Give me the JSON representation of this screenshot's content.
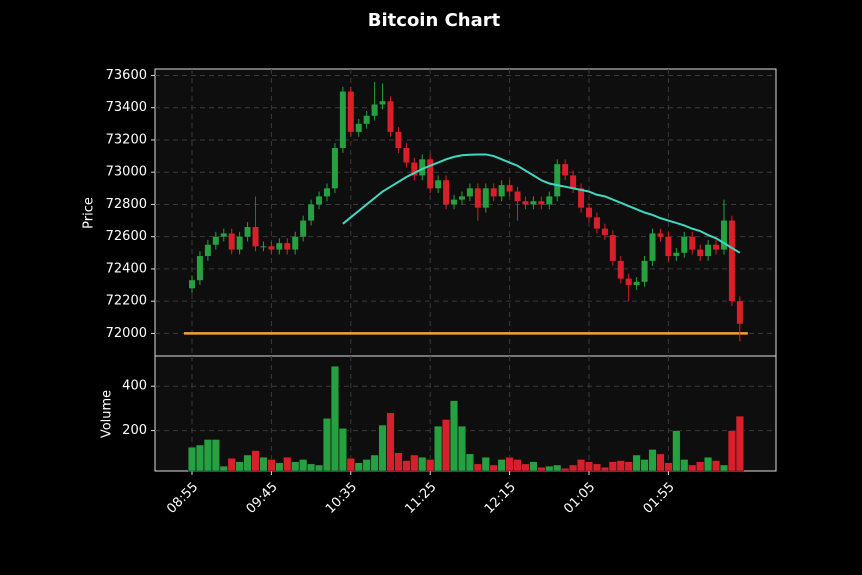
{
  "chart_data": {
    "type": "candlestick",
    "title": "Bitcoin Chart",
    "ylabel": "Price",
    "categories": [
      "08:55",
      null,
      null,
      null,
      null,
      null,
      null,
      null,
      null,
      null,
      "09:45",
      null,
      null,
      null,
      null,
      null,
      null,
      null,
      null,
      null,
      "10:35",
      null,
      null,
      null,
      null,
      null,
      null,
      null,
      null,
      null,
      "11:25",
      null,
      null,
      null,
      null,
      null,
      null,
      null,
      null,
      null,
      "12:15",
      null,
      null,
      null,
      null,
      null,
      null,
      null,
      null,
      null,
      "01:05",
      null,
      null,
      null,
      null,
      null,
      null,
      null,
      null,
      null,
      "01:55",
      null,
      null,
      null,
      null,
      null,
      null,
      null,
      null,
      null
    ],
    "open": [
      72280,
      72330,
      72480,
      72550,
      72600,
      72620,
      72520,
      72600,
      72660,
      72540,
      72540,
      72520,
      72560,
      72520,
      72600,
      72700,
      72800,
      72850,
      72900,
      73150,
      73500,
      73250,
      73300,
      73350,
      73420,
      73440,
      73250,
      73150,
      73060,
      72980,
      73080,
      72900,
      72950,
      72800,
      72830,
      72850,
      72900,
      72780,
      72900,
      72850,
      72920,
      72880,
      72820,
      72800,
      72820,
      72800,
      72850,
      73050,
      72980,
      72900,
      72780,
      72720,
      72650,
      72610,
      72450,
      72340,
      72300,
      72320,
      72450,
      72620,
      72600,
      72480,
      72500,
      72600,
      72520,
      72480,
      72550,
      72520,
      72700,
      72200
    ],
    "high": [
      72360,
      72510,
      72580,
      72630,
      72650,
      72650,
      72630,
      72690,
      72850,
      72570,
      72570,
      72590,
      72590,
      72630,
      72730,
      72830,
      72880,
      72930,
      73180,
      73530,
      73530,
      73330,
      73380,
      73560,
      73550,
      73470,
      73280,
      73180,
      73090,
      73110,
      73110,
      72980,
      72980,
      72860,
      72880,
      72930,
      72930,
      72930,
      72930,
      72950,
      72950,
      72910,
      72850,
      72850,
      72850,
      72880,
      73080,
      73080,
      73010,
      72930,
      72810,
      72750,
      72680,
      72640,
      72480,
      72370,
      72350,
      72480,
      72650,
      72650,
      72630,
      72530,
      72630,
      72630,
      72550,
      72580,
      72580,
      72830,
      72730,
      72230
    ],
    "low": [
      72250,
      72300,
      72450,
      72520,
      72570,
      72490,
      72490,
      72570,
      72510,
      72510,
      72490,
      72490,
      72490,
      72490,
      72570,
      72670,
      72770,
      72820,
      72870,
      73120,
      73220,
      73220,
      73270,
      73320,
      73390,
      73220,
      73120,
      73030,
      72950,
      72950,
      72870,
      72870,
      72770,
      72770,
      72800,
      72820,
      72700,
      72750,
      72820,
      72820,
      72850,
      72700,
      72770,
      72770,
      72770,
      72770,
      72820,
      72950,
      72870,
      72750,
      72690,
      72620,
      72580,
      72420,
      72310,
      72200,
      72270,
      72290,
      72420,
      72570,
      72450,
      72450,
      72470,
      72490,
      72450,
      72450,
      72490,
      72490,
      72170,
      71950
    ],
    "close": [
      72330,
      72480,
      72550,
      72600,
      72620,
      72520,
      72600,
      72660,
      72540,
      72540,
      72520,
      72560,
      72520,
      72600,
      72700,
      72800,
      72850,
      72900,
      73150,
      73500,
      73250,
      73300,
      73350,
      73420,
      73440,
      73250,
      73150,
      73060,
      72980,
      73080,
      72900,
      72950,
      72800,
      72830,
      72850,
      72900,
      72780,
      72900,
      72850,
      72920,
      72880,
      72820,
      72800,
      72820,
      72800,
      72850,
      73050,
      72980,
      72900,
      72780,
      72720,
      72650,
      72610,
      72450,
      72340,
      72300,
      72320,
      72450,
      72620,
      72600,
      72480,
      72500,
      72600,
      72520,
      72480,
      72550,
      72520,
      72700,
      72200,
      72060
    ],
    "up_color": "#26a041",
    "down_color": "#d9202a",
    "ylim": [
      71860,
      73640
    ],
    "yticks": [
      72000,
      72200,
      72400,
      72600,
      72800,
      73000,
      73200,
      73400,
      73600
    ],
    "grid": true,
    "ma": {
      "color": "#40d8c0",
      "values": [
        null,
        null,
        null,
        null,
        null,
        null,
        null,
        null,
        null,
        null,
        null,
        null,
        null,
        null,
        null,
        null,
        null,
        null,
        null,
        72680,
        72720,
        72760,
        72800,
        72840,
        72880,
        72910,
        72940,
        72970,
        72995,
        73020,
        73040,
        73060,
        73080,
        73095,
        73105,
        73108,
        73110,
        73110,
        73100,
        73080,
        73060,
        73040,
        73010,
        72980,
        72950,
        72930,
        72920,
        72910,
        72900,
        72890,
        72880,
        72860,
        72850,
        72830,
        72810,
        72790,
        72770,
        72750,
        72735,
        72715,
        72700,
        72685,
        72670,
        72650,
        72635,
        72610,
        72590,
        72560,
        72530,
        72500
      ]
    },
    "reference_line": {
      "value": 72000,
      "color": "#f5a030"
    },
    "volume": {
      "ylabel": "Volume",
      "ylim": [
        18,
        536
      ],
      "yticks": [
        200,
        400
      ],
      "values": [
        125,
        135,
        160,
        160,
        40,
        75,
        60,
        90,
        110,
        80,
        70,
        55,
        80,
        60,
        70,
        50,
        45,
        255,
        490,
        210,
        75,
        55,
        70,
        90,
        225,
        280,
        100,
        65,
        90,
        80,
        70,
        220,
        250,
        335,
        220,
        95,
        50,
        80,
        45,
        70,
        80,
        70,
        50,
        60,
        35,
        40,
        45,
        30,
        45,
        70,
        60,
        50,
        35,
        60,
        65,
        60,
        90,
        70,
        115,
        95,
        55,
        200,
        70,
        45,
        60,
        80,
        65,
        45,
        200,
        265
      ]
    }
  }
}
